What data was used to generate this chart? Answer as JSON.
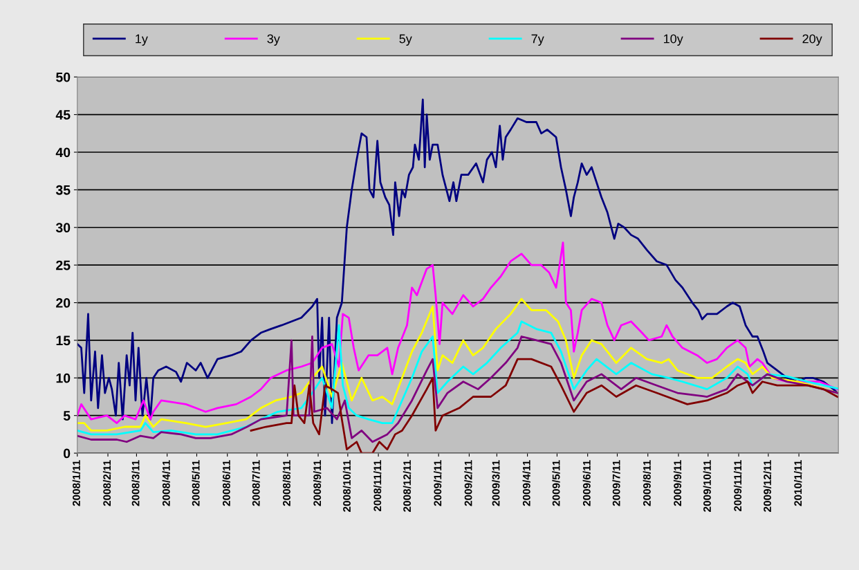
{
  "chart_data": {
    "type": "line",
    "legend": "top",
    "grid": "y",
    "line_style": "solid",
    "xlim": [
      "2008-01-11",
      "2010-02-20"
    ],
    "ylim": [
      0,
      50
    ],
    "yticks": [
      0,
      5,
      10,
      15,
      20,
      25,
      30,
      35,
      40,
      45,
      50
    ],
    "xticks": [
      {
        "value": "2008-01-11",
        "label": "2008/1/11"
      },
      {
        "value": "2008-02-11",
        "label": "2008/2/11"
      },
      {
        "value": "2008-03-11",
        "label": "2008/3/11"
      },
      {
        "value": "2008-04-11",
        "label": "2008/4/11"
      },
      {
        "value": "2008-05-11",
        "label": "2008/5/11"
      },
      {
        "value": "2008-06-11",
        "label": "2008/6/11"
      },
      {
        "value": "2008-07-11",
        "label": "2008/7/11"
      },
      {
        "value": "2008-08-11",
        "label": "2008/8/11"
      },
      {
        "value": "2008-09-11",
        "label": "2008/9/11"
      },
      {
        "value": "2008-10-11",
        "label": "2008/10/11"
      },
      {
        "value": "2008-11-11",
        "label": "2008/11/11"
      },
      {
        "value": "2008-12-11",
        "label": "2008/12/11"
      },
      {
        "value": "2009-01-11",
        "label": "2009/1/11"
      },
      {
        "value": "2009-02-11",
        "label": "2009/2/11"
      },
      {
        "value": "2009-03-11",
        "label": "2009/3/11"
      },
      {
        "value": "2009-04-11",
        "label": "2009/4/11"
      },
      {
        "value": "2009-05-11",
        "label": "2009/5/11"
      },
      {
        "value": "2009-06-11",
        "label": "2009/6/11"
      },
      {
        "value": "2009-07-11",
        "label": "2009/7/11"
      },
      {
        "value": "2009-08-11",
        "label": "2009/8/11"
      },
      {
        "value": "2009-09-11",
        "label": "2009/9/11"
      },
      {
        "value": "2009-10-11",
        "label": "2009/10/11"
      },
      {
        "value": "2009-11-11",
        "label": "2009/11/11"
      },
      {
        "value": "2009-12-11",
        "label": "2009/12/11"
      },
      {
        "value": "2010-01-11",
        "label": "2010/1/11"
      }
    ],
    "series": [
      {
        "name": "1y",
        "color": "#000080",
        "x": [
          "2008-01-11",
          "2008-01-15",
          "2008-01-18",
          "2008-01-22",
          "2008-01-25",
          "2008-01-29",
          "2008-02-01",
          "2008-02-05",
          "2008-02-08",
          "2008-02-12",
          "2008-02-15",
          "2008-02-19",
          "2008-02-22",
          "2008-02-26",
          "2008-03-01",
          "2008-03-04",
          "2008-03-07",
          "2008-03-10",
          "2008-03-13",
          "2008-03-17",
          "2008-03-21",
          "2008-03-25",
          "2008-03-28",
          "2008-04-02",
          "2008-04-10",
          "2008-04-20",
          "2008-04-25",
          "2008-05-01",
          "2008-05-10",
          "2008-05-15",
          "2008-05-22",
          "2008-06-01",
          "2008-06-15",
          "2008-06-25",
          "2008-07-05",
          "2008-07-15",
          "2008-07-25",
          "2008-08-05",
          "2008-08-15",
          "2008-08-25",
          "2008-09-05",
          "2008-09-10",
          "2008-09-12",
          "2008-09-15",
          "2008-09-18",
          "2008-09-22",
          "2008-09-25",
          "2008-09-30",
          "2008-10-05",
          "2008-10-10",
          "2008-10-15",
          "2008-10-20",
          "2008-10-25",
          "2008-10-30",
          "2008-11-02",
          "2008-11-06",
          "2008-11-10",
          "2008-11-13",
          "2008-11-18",
          "2008-11-22",
          "2008-11-26",
          "2008-11-28",
          "2008-12-02",
          "2008-12-05",
          "2008-12-08",
          "2008-12-12",
          "2008-12-16",
          "2008-12-18",
          "2008-12-22",
          "2008-12-26",
          "2008-12-28",
          "2008-12-30",
          "2009-01-02",
          "2009-01-05",
          "2009-01-10",
          "2009-01-15",
          "2009-01-22",
          "2009-01-26",
          "2009-01-29",
          "2009-02-03",
          "2009-02-10",
          "2009-02-18",
          "2009-02-25",
          "2009-03-01",
          "2009-03-06",
          "2009-03-10",
          "2009-03-14",
          "2009-03-17",
          "2009-03-20",
          "2009-03-25",
          "2009-04-01",
          "2009-04-10",
          "2009-04-20",
          "2009-04-25",
          "2009-05-01",
          "2009-05-10",
          "2009-05-15",
          "2009-05-20",
          "2009-05-25",
          "2009-05-28",
          "2009-06-01",
          "2009-06-05",
          "2009-06-10",
          "2009-06-15",
          "2009-06-20",
          "2009-06-25",
          "2009-07-01",
          "2009-07-05",
          "2009-07-08",
          "2009-07-12",
          "2009-07-18",
          "2009-07-25",
          "2009-08-01",
          "2009-08-10",
          "2009-08-20",
          "2009-08-30",
          "2009-09-08",
          "2009-09-15",
          "2009-09-25",
          "2009-10-01",
          "2009-10-05",
          "2009-10-10",
          "2009-10-20",
          "2009-10-30",
          "2009-11-05",
          "2009-11-12",
          "2009-11-18",
          "2009-11-25",
          "2009-11-30",
          "2009-12-06",
          "2009-12-10",
          "2009-12-20",
          "2009-12-30",
          "2010-01-10",
          "2010-01-18",
          "2010-01-25",
          "2010-02-05",
          "2010-02-15",
          "2010-02-19"
        ],
        "values": [
          14.5,
          14,
          8,
          18.5,
          7,
          13.5,
          6,
          13,
          8,
          10,
          8.5,
          5,
          12,
          4.5,
          13,
          9,
          16,
          7,
          14,
          5,
          10,
          4.5,
          10,
          11,
          11.5,
          10.8,
          9.5,
          12,
          11,
          12,
          10,
          12.5,
          13,
          13.5,
          15,
          16,
          16.5,
          17,
          17.5,
          18,
          19.5,
          20.5,
          10,
          18,
          5,
          18,
          4,
          18,
          20,
          30,
          35,
          39,
          42.5,
          42,
          35,
          34,
          41.5,
          36,
          34,
          33,
          29,
          36,
          31.5,
          35,
          34,
          37,
          38,
          41,
          39,
          47,
          38,
          45,
          39,
          41,
          41,
          37,
          33.5,
          36,
          33.5,
          37,
          37,
          38.5,
          36,
          39,
          40,
          38,
          43.5,
          39,
          42,
          43,
          44.5,
          44,
          44,
          42.5,
          43,
          42,
          38,
          35,
          31.5,
          34,
          36,
          38.5,
          37,
          38,
          36,
          34,
          32,
          30,
          28.5,
          30.5,
          30,
          29,
          28.5,
          27,
          25.5,
          25,
          23,
          22,
          20,
          19,
          17.8,
          18.5,
          18.5,
          19.5,
          20,
          19.5,
          17,
          15.5,
          15.5,
          13.5,
          12,
          11,
          10,
          9.5,
          10,
          10,
          9.5,
          8.5,
          8
        ]
      },
      {
        "name": "3y",
        "color": "#ff00ff",
        "x": [
          "2008-01-11",
          "2008-01-15",
          "2008-01-25",
          "2008-02-10",
          "2008-02-20",
          "2008-02-28",
          "2008-03-10",
          "2008-03-18",
          "2008-03-25",
          "2008-03-28",
          "2008-04-05",
          "2008-04-30",
          "2008-05-10",
          "2008-05-20",
          "2008-06-01",
          "2008-06-20",
          "2008-07-05",
          "2008-07-15",
          "2008-07-25",
          "2008-08-10",
          "2008-08-25",
          "2008-09-05",
          "2008-09-15",
          "2008-09-25",
          "2008-10-02",
          "2008-10-06",
          "2008-10-12",
          "2008-10-17",
          "2008-10-22",
          "2008-11-01",
          "2008-11-10",
          "2008-11-20",
          "2008-11-25",
          "2008-12-01",
          "2008-12-10",
          "2008-12-15",
          "2008-12-20",
          "2008-12-30",
          "2009-01-05",
          "2009-01-08",
          "2009-01-12",
          "2009-01-15",
          "2009-01-25",
          "2009-02-05",
          "2009-02-15",
          "2009-02-25",
          "2009-03-05",
          "2009-03-15",
          "2009-03-25",
          "2009-04-05",
          "2009-04-15",
          "2009-04-25",
          "2009-05-03",
          "2009-05-10",
          "2009-05-13",
          "2009-05-17",
          "2009-05-20",
          "2009-05-25",
          "2009-05-28",
          "2009-06-01",
          "2009-06-05",
          "2009-06-15",
          "2009-06-25",
          "2009-07-01",
          "2009-07-08",
          "2009-07-15",
          "2009-07-25",
          "2009-08-05",
          "2009-08-12",
          "2009-08-25",
          "2009-08-30",
          "2009-09-05",
          "2009-09-15",
          "2009-09-30",
          "2009-10-10",
          "2009-10-20",
          "2009-10-30",
          "2009-11-10",
          "2009-11-18",
          "2009-11-22",
          "2009-11-30",
          "2009-12-05",
          "2009-12-15",
          "2009-12-30",
          "2010-01-15",
          "2010-02-01",
          "2010-02-19"
        ],
        "values": [
          5,
          6.5,
          4.5,
          5,
          4,
          5,
          4.5,
          7,
          4.5,
          5.5,
          7,
          6.5,
          6,
          5.5,
          6,
          6.5,
          7.5,
          8.5,
          10,
          11,
          11.5,
          12,
          14,
          14.5,
          11.5,
          18.5,
          18,
          14,
          11,
          13,
          13,
          14,
          10.5,
          14,
          17,
          22,
          21,
          24.5,
          25,
          21,
          14.5,
          20,
          18.5,
          21,
          19.5,
          20.5,
          22,
          23.5,
          25.5,
          26.5,
          25,
          25,
          24,
          22,
          24.5,
          28,
          20,
          19,
          13.5,
          16,
          19,
          20.5,
          20,
          17,
          15,
          17,
          17.5,
          16,
          15,
          15.5,
          17,
          15.5,
          14,
          13,
          12,
          12.5,
          14,
          15,
          14,
          11.5,
          12.5,
          12,
          10,
          9.5,
          9.5,
          9.5,
          8.5
        ]
      },
      {
        "name": "5y",
        "color": "#ffff00",
        "x": [
          "2008-01-11",
          "2008-01-18",
          "2008-01-25",
          "2008-02-10",
          "2008-02-28",
          "2008-03-15",
          "2008-03-20",
          "2008-03-28",
          "2008-04-05",
          "2008-04-30",
          "2008-05-20",
          "2008-06-10",
          "2008-06-30",
          "2008-07-15",
          "2008-07-30",
          "2008-08-15",
          "2008-08-25",
          "2008-09-05",
          "2008-09-15",
          "2008-09-25",
          "2008-10-05",
          "2008-10-15",
          "2008-10-25",
          "2008-11-05",
          "2008-11-15",
          "2008-11-25",
          "2008-12-05",
          "2008-12-15",
          "2008-12-25",
          "2009-01-05",
          "2009-01-10",
          "2009-01-15",
          "2009-01-25",
          "2009-02-05",
          "2009-02-15",
          "2009-02-25",
          "2009-03-10",
          "2009-03-25",
          "2009-04-05",
          "2009-04-15",
          "2009-04-30",
          "2009-05-12",
          "2009-05-20",
          "2009-05-28",
          "2009-06-05",
          "2009-06-15",
          "2009-06-25",
          "2009-07-10",
          "2009-07-25",
          "2009-08-10",
          "2009-08-25",
          "2009-09-01",
          "2009-09-10",
          "2009-09-30",
          "2009-10-15",
          "2009-10-30",
          "2009-11-10",
          "2009-11-18",
          "2009-11-25",
          "2009-12-05",
          "2009-12-15",
          "2010-01-10",
          "2010-02-19"
        ],
        "values": [
          4,
          4,
          3,
          3,
          3.5,
          3.5,
          5,
          3.5,
          4.5,
          4,
          3.5,
          4,
          4.5,
          6,
          7,
          7.5,
          8,
          10,
          11.5,
          7.5,
          12,
          7,
          10,
          7,
          7.5,
          6.5,
          10,
          13.5,
          16,
          19.5,
          11,
          13,
          12,
          15,
          13,
          14,
          16.5,
          18.5,
          20.5,
          19,
          19,
          17.5,
          15,
          10,
          13,
          15,
          14.5,
          12,
          14,
          12.5,
          12,
          12.5,
          11,
          10,
          10,
          11.5,
          12.5,
          12,
          10.5,
          11.5,
          10,
          9.5,
          8
        ]
      },
      {
        "name": "7y",
        "color": "#00ffff",
        "x": [
          "2008-01-11",
          "2008-01-25",
          "2008-02-20",
          "2008-03-15",
          "2008-03-20",
          "2008-03-28",
          "2008-04-15",
          "2008-05-10",
          "2008-06-01",
          "2008-06-30",
          "2008-07-15",
          "2008-08-01",
          "2008-08-25",
          "2008-09-05",
          "2008-09-15",
          "2008-09-25",
          "2008-10-02",
          "2008-10-06",
          "2008-10-12",
          "2008-10-20",
          "2008-11-01",
          "2008-11-15",
          "2008-11-25",
          "2008-12-05",
          "2008-12-15",
          "2008-12-25",
          "2009-01-05",
          "2009-01-10",
          "2009-01-20",
          "2009-02-05",
          "2009-02-15",
          "2009-03-01",
          "2009-03-15",
          "2009-04-01",
          "2009-04-05",
          "2009-04-20",
          "2009-05-05",
          "2009-05-15",
          "2009-05-28",
          "2009-06-10",
          "2009-06-20",
          "2009-07-10",
          "2009-07-25",
          "2009-08-15",
          "2009-09-01",
          "2009-09-15",
          "2009-10-10",
          "2009-10-30",
          "2009-11-10",
          "2009-11-20",
          "2009-11-25",
          "2009-12-10",
          "2009-12-30",
          "2010-01-20",
          "2010-02-19"
        ],
        "values": [
          3,
          2.5,
          2.5,
          3,
          4,
          2.8,
          3,
          2.5,
          2.5,
          3.5,
          4.5,
          5.5,
          6,
          8,
          10,
          6,
          17,
          9,
          6,
          5,
          4.5,
          4,
          4,
          7,
          10,
          13.5,
          15.5,
          8,
          9.5,
          11.5,
          10.5,
          12,
          14,
          16,
          17.5,
          16.5,
          16,
          13.5,
          8.5,
          11,
          12.5,
          10.5,
          12,
          10.5,
          10,
          9.5,
          8.5,
          10,
          11.5,
          10.5,
          9,
          10.5,
          10.2,
          9.5,
          8.6
        ]
      },
      {
        "name": "10y",
        "color": "#800080",
        "x": [
          "2008-01-11",
          "2008-01-25",
          "2008-02-20",
          "2008-03-01",
          "2008-03-15",
          "2008-03-28",
          "2008-04-05",
          "2008-04-25",
          "2008-05-10",
          "2008-05-25",
          "2008-06-15",
          "2008-07-01",
          "2008-07-15",
          "2008-08-10",
          "2008-08-15",
          "2008-08-17",
          "2008-09-02",
          "2008-09-05",
          "2008-09-07",
          "2008-09-20",
          "2008-09-30",
          "2008-10-08",
          "2008-10-15",
          "2008-10-25",
          "2008-11-05",
          "2008-11-20",
          "2008-12-01",
          "2008-12-15",
          "2008-12-30",
          "2009-01-05",
          "2009-01-10",
          "2009-01-20",
          "2009-02-05",
          "2009-02-20",
          "2009-03-05",
          "2009-03-20",
          "2009-04-01",
          "2009-04-05",
          "2009-04-20",
          "2009-05-05",
          "2009-05-15",
          "2009-05-28",
          "2009-06-10",
          "2009-06-25",
          "2009-07-15",
          "2009-07-30",
          "2009-08-20",
          "2009-09-10",
          "2009-10-10",
          "2009-10-30",
          "2009-11-10",
          "2009-11-25",
          "2009-12-10",
          "2009-12-30",
          "2010-01-20",
          "2010-02-19"
        ],
        "values": [
          2.3,
          1.8,
          1.8,
          1.5,
          2.3,
          2,
          2.8,
          2.5,
          2,
          2,
          2.5,
          3.5,
          4.5,
          5,
          15,
          5,
          5,
          15.5,
          5.5,
          6,
          4.5,
          7,
          2,
          3,
          1.5,
          2.5,
          4,
          7,
          11,
          12.5,
          6,
          8,
          9.5,
          8.5,
          10,
          12,
          14,
          15.5,
          15,
          14.5,
          12,
          7,
          9.5,
          10.5,
          8.5,
          10,
          9,
          8,
          7.5,
          8.5,
          10.5,
          9,
          10.5,
          9.5,
          9,
          8
        ]
      },
      {
        "name": "20y",
        "color": "#800000",
        "x": [
          "2008-07-05",
          "2008-07-20",
          "2008-08-10",
          "2008-08-15",
          "2008-08-18",
          "2008-08-22",
          "2008-08-28",
          "2008-09-02",
          "2008-09-06",
          "2008-09-12",
          "2008-09-18",
          "2008-09-25",
          "2008-10-01",
          "2008-10-05",
          "2008-10-10",
          "2008-10-20",
          "2008-10-25",
          "2008-11-05",
          "2008-11-12",
          "2008-11-20",
          "2008-11-28",
          "2008-12-05",
          "2008-12-15",
          "2008-12-30",
          "2009-01-05",
          "2009-01-08",
          "2009-01-15",
          "2009-02-01",
          "2009-02-15",
          "2009-03-05",
          "2009-03-20",
          "2009-04-01",
          "2009-04-15",
          "2009-05-05",
          "2009-05-15",
          "2009-05-28",
          "2009-06-10",
          "2009-06-25",
          "2009-07-10",
          "2009-07-30",
          "2009-08-20",
          "2009-09-20",
          "2009-10-10",
          "2009-10-30",
          "2009-11-10",
          "2009-11-20",
          "2009-11-25",
          "2009-12-05",
          "2009-12-20",
          "2010-01-20",
          "2010-02-05",
          "2010-02-19"
        ],
        "values": [
          3,
          3.5,
          4,
          4,
          9,
          5,
          4,
          9,
          4,
          2.5,
          9,
          8.5,
          8,
          4.5,
          0.5,
          1.5,
          0,
          0,
          1.5,
          0.5,
          2.5,
          3,
          5,
          8.5,
          10,
          3,
          5,
          6,
          7.5,
          7.5,
          9,
          12.5,
          12.5,
          11.5,
          9,
          5.5,
          8,
          9,
          7.5,
          9,
          8,
          6.5,
          7,
          8,
          9,
          9.5,
          8,
          9.5,
          9,
          9,
          8.5,
          7.5
        ]
      }
    ]
  }
}
